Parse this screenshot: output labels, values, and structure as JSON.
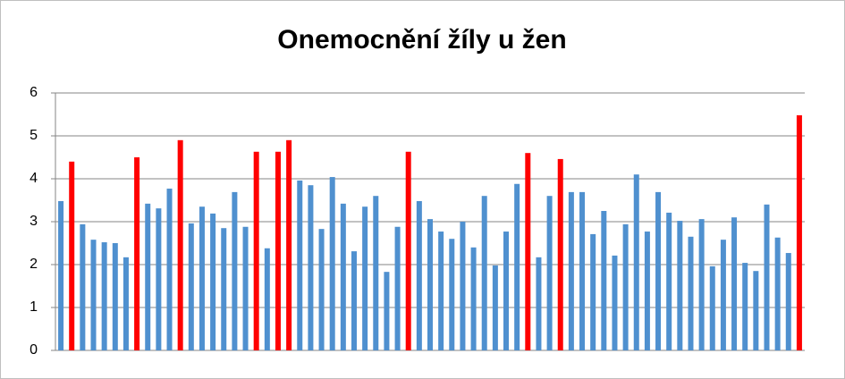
{
  "chart_data": {
    "type": "bar",
    "title": "Onemocnění žíly u žen",
    "categories": [
      null,
      null,
      null,
      null,
      null,
      null,
      null,
      null,
      null,
      null,
      null,
      null,
      null,
      null,
      null,
      null,
      null,
      null,
      null,
      null,
      null,
      null,
      null,
      null,
      null,
      null,
      null,
      null,
      null,
      null,
      null,
      null,
      null,
      null,
      null,
      null,
      null,
      null,
      null,
      null,
      null,
      null,
      null,
      null,
      null,
      null,
      null,
      null,
      null,
      null,
      null,
      null,
      null,
      null,
      null,
      null,
      null,
      null,
      null,
      null,
      null,
      null,
      null,
      null,
      null,
      null,
      null,
      null,
      null
    ],
    "values": [
      3.48,
      4.4,
      2.94,
      2.58,
      2.52,
      2.5,
      2.17,
      4.5,
      3.42,
      3.31,
      3.77,
      4.9,
      2.96,
      3.35,
      3.19,
      2.85,
      3.69,
      2.88,
      4.63,
      2.38,
      4.63,
      4.9,
      3.96,
      3.85,
      2.83,
      4.04,
      3.42,
      2.31,
      3.35,
      3.6,
      1.83,
      2.88,
      4.63,
      3.48,
      3.06,
      2.77,
      2.6,
      3.0,
      2.4,
      3.6,
      1.98,
      2.77,
      3.88,
      4.6,
      2.17,
      3.6,
      4.46,
      3.69,
      3.69,
      2.71,
      3.25,
      2.21,
      2.94,
      4.1,
      2.77,
      3.69,
      3.21,
      3.02,
      2.65,
      3.06,
      1.96,
      2.58,
      3.1,
      2.04,
      1.85,
      3.4,
      2.63,
      2.27,
      5.48
    ],
    "colors": [
      "#4f90cf",
      "#ff0000",
      "#4f90cf",
      "#4f90cf",
      "#4f90cf",
      "#4f90cf",
      "#4f90cf",
      "#ff0000",
      "#4f90cf",
      "#4f90cf",
      "#4f90cf",
      "#ff0000",
      "#4f90cf",
      "#4f90cf",
      "#4f90cf",
      "#4f90cf",
      "#4f90cf",
      "#4f90cf",
      "#ff0000",
      "#4f90cf",
      "#ff0000",
      "#ff0000",
      "#4f90cf",
      "#4f90cf",
      "#4f90cf",
      "#4f90cf",
      "#4f90cf",
      "#4f90cf",
      "#4f90cf",
      "#4f90cf",
      "#4f90cf",
      "#4f90cf",
      "#ff0000",
      "#4f90cf",
      "#4f90cf",
      "#4f90cf",
      "#4f90cf",
      "#4f90cf",
      "#4f90cf",
      "#4f90cf",
      "#4f90cf",
      "#4f90cf",
      "#4f90cf",
      "#ff0000",
      "#4f90cf",
      "#4f90cf",
      "#ff0000",
      "#4f90cf",
      "#4f90cf",
      "#4f90cf",
      "#4f90cf",
      "#4f90cf",
      "#4f90cf",
      "#4f90cf",
      "#4f90cf",
      "#4f90cf",
      "#4f90cf",
      "#4f90cf",
      "#4f90cf",
      "#4f90cf",
      "#4f90cf",
      "#4f90cf",
      "#4f90cf",
      "#4f90cf",
      "#4f90cf",
      "#4f90cf",
      "#4f90cf",
      "#4f90cf",
      "#ff0000"
    ],
    "ylim": [
      0,
      6
    ],
    "yticks": [
      0,
      1,
      2,
      3,
      4,
      5,
      6
    ],
    "grid": true
  }
}
